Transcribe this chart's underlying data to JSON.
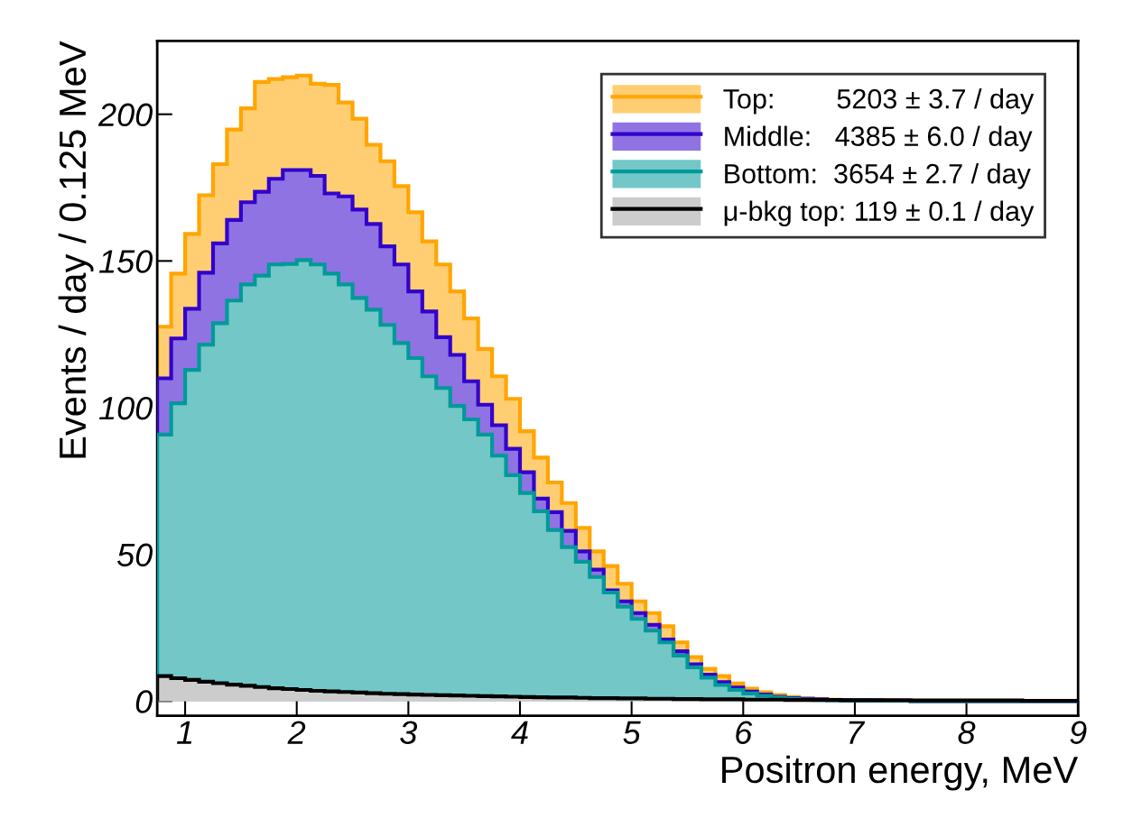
{
  "chart_data": {
    "type": "histogram",
    "xlabel": "Positron energy, MeV",
    "ylabel": "Events / day / 0.125 MeV",
    "bins": [
      0.75,
      0.875,
      1.0,
      1.125,
      1.25,
      1.375,
      1.5,
      1.625,
      1.75,
      1.875,
      2.0,
      2.125,
      2.25,
      2.375,
      2.5,
      2.625,
      2.75,
      2.875,
      3.0,
      3.125,
      3.25,
      3.375,
      3.5,
      3.625,
      3.75,
      3.875,
      4.0,
      4.125,
      4.25,
      4.375,
      4.5,
      4.625,
      4.75,
      4.875,
      5.0,
      5.125,
      5.25,
      5.375,
      5.5,
      5.625,
      5.75,
      5.875,
      6.0,
      6.125,
      6.25,
      6.375,
      6.5,
      6.625,
      6.75,
      6.875,
      7.0,
      7.125,
      7.25,
      7.375,
      7.5,
      7.625,
      7.75,
      7.875,
      8.0,
      8.125,
      8.25,
      8.375,
      8.5,
      8.625,
      8.75,
      8.875,
      9.0
    ],
    "series": [
      {
        "name": "Top:        5203 ± 3.7 / day",
        "color": "#ffa500",
        "values": [
          127.6,
          145.7,
          159.2,
          172.4,
          183,
          194.8,
          202,
          211,
          212,
          212.6,
          213.2,
          210.4,
          210,
          204,
          198.5,
          189.6,
          184,
          175.5,
          166.6,
          156.7,
          148.8,
          139.6,
          130.4,
          120,
          110.7,
          103,
          92,
          83,
          74.5,
          67.5,
          59,
          51,
          46,
          40,
          34,
          30,
          25.5,
          20,
          15,
          11,
          8.5,
          6,
          4.2,
          3,
          2.1,
          1.4,
          0.9,
          0.7,
          0.5,
          0.4,
          0.3,
          0.2,
          0.2,
          0.1,
          0,
          0,
          0,
          0,
          0,
          0,
          0,
          0,
          0,
          0,
          0,
          0
        ]
      },
      {
        "name": "Middle:   4385 ± 6.0 / day",
        "color": "#3300cc",
        "values": [
          110,
          123.6,
          133.7,
          146,
          156,
          164,
          170,
          173.6,
          178,
          181,
          181,
          179,
          173,
          172,
          167.5,
          162.6,
          155,
          148.8,
          139.6,
          132.8,
          124,
          118,
          109,
          101,
          94,
          86,
          78,
          69,
          64.4,
          58,
          51,
          44.8,
          37.7,
          34,
          30,
          26,
          21,
          17,
          12.5,
          9,
          6.5,
          4.6,
          3.2,
          2.2,
          1.5,
          1.0,
          0.8,
          0.6,
          0.4,
          0.3,
          0.2,
          0.2,
          0.1,
          0.1,
          0,
          0,
          0,
          0,
          0,
          0,
          0,
          0,
          0,
          0,
          0,
          0
        ]
      },
      {
        "name": "Bottom:  3654 ± 2.7 / day",
        "color": "#009999",
        "values": [
          90.8,
          101.5,
          112.9,
          121.5,
          128.8,
          136.5,
          142,
          145,
          148.8,
          149,
          150.3,
          148.8,
          145.7,
          142,
          137.4,
          133.4,
          128.2,
          122,
          116.9,
          110.7,
          106.7,
          100.6,
          96,
          90.8,
          83.7,
          77,
          70.9,
          64.7,
          58.3,
          52.5,
          47.5,
          42.3,
          37,
          32.2,
          28,
          24,
          20,
          15.5,
          11.5,
          8,
          5.5,
          3.8,
          2.6,
          1.8,
          1.2,
          0.8,
          0.5,
          0.4,
          0.3,
          0.2,
          0.2,
          0.1,
          0.1,
          0.1,
          0,
          0,
          0,
          0,
          0,
          0,
          0,
          0,
          0,
          0,
          0,
          0
        ]
      },
      {
        "name": "μ-bkg top: 119 ± 0.1 / day",
        "color": "#000000",
        "values": [
          8.5,
          7.8,
          7.2,
          6.6,
          6.1,
          5.6,
          5.2,
          4.8,
          4.4,
          4.1,
          3.8,
          3.5,
          3.3,
          3.1,
          2.9,
          2.7,
          2.5,
          2.4,
          2.2,
          2.1,
          2.0,
          1.9,
          1.8,
          1.7,
          1.6,
          1.5,
          1.4,
          1.3,
          1.2,
          1.2,
          1.1,
          1.0,
          1.0,
          0.9,
          0.9,
          0.8,
          0.8,
          0.7,
          0.7,
          0.6,
          0.6,
          0.6,
          0.5,
          0.5,
          0.5,
          0.4,
          0.4,
          0.4,
          0.4,
          0.3,
          0.3,
          0.3,
          0.3,
          0.3,
          0.2,
          0.2,
          0.2,
          0.2,
          0.2,
          0.2,
          0.2,
          0.2,
          0.1,
          0.1,
          0.1,
          0.1
        ]
      }
    ],
    "xlim": [
      0.75,
      9
    ],
    "ylim": [
      -5,
      225
    ],
    "xticks": [
      1,
      2,
      3,
      4,
      5,
      6,
      7,
      8,
      9
    ],
    "yticks": [
      0,
      50,
      100,
      150,
      200
    ],
    "legend": "top right",
    "grid": false
  }
}
